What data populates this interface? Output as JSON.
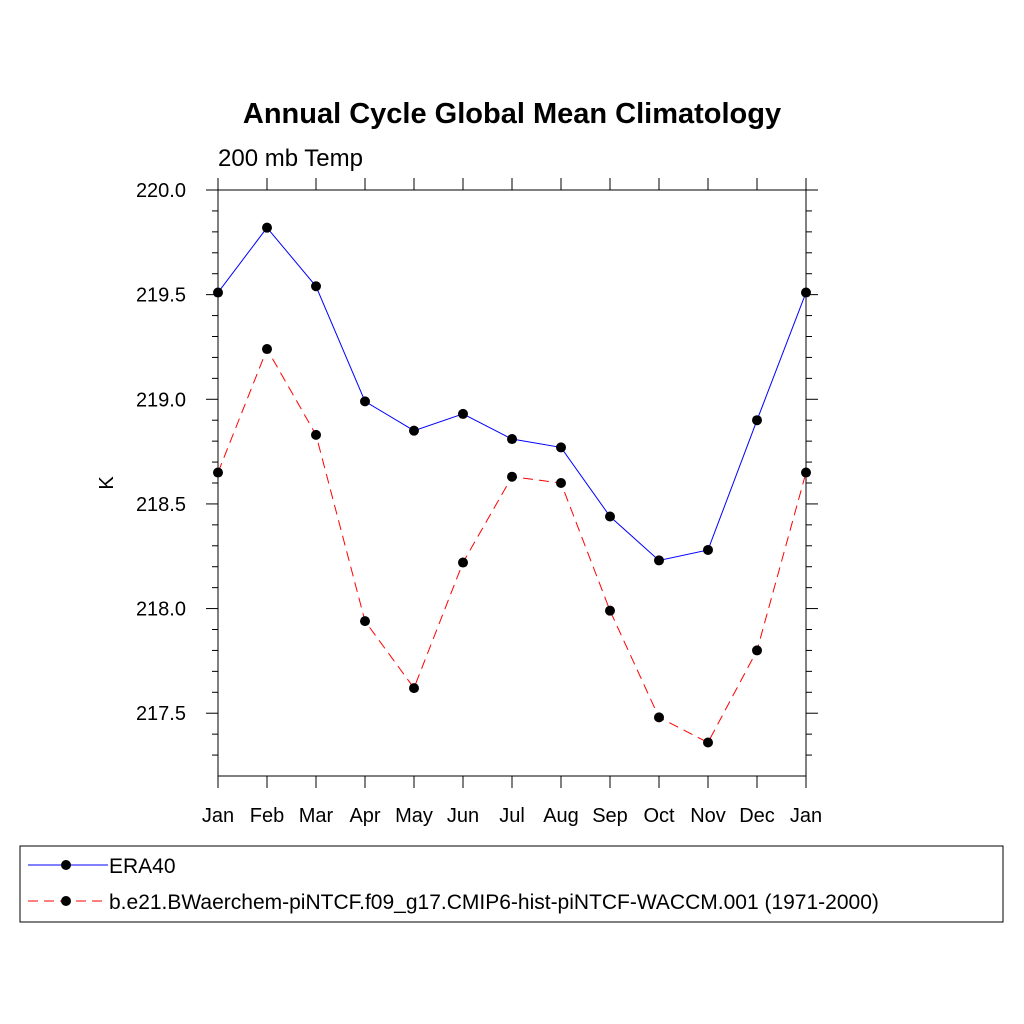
{
  "chart_data": {
    "type": "line",
    "title": "Annual Cycle Global Mean Climatology",
    "subtitle": "200 mb Temp",
    "ylabel": "K",
    "xlabel": "",
    "categories": [
      "Jan",
      "Feb",
      "Mar",
      "Apr",
      "May",
      "Jun",
      "Jul",
      "Aug",
      "Sep",
      "Oct",
      "Nov",
      "Dec",
      "Jan"
    ],
    "ylim": [
      217.2,
      220.0
    ],
    "yticks": [
      217.5,
      218.0,
      218.5,
      219.0,
      219.5,
      220.0
    ],
    "ytick_labels": [
      "217.5",
      "218.0",
      "218.5",
      "219.0",
      "219.5",
      "220.0"
    ],
    "grid": false,
    "legend_position": "bottom",
    "series": [
      {
        "name": "ERA40",
        "color": "#0000ff",
        "line_style": "solid",
        "marker": "filled-circle",
        "values": [
          219.51,
          219.82,
          219.54,
          218.99,
          218.85,
          218.93,
          218.81,
          218.77,
          218.44,
          218.23,
          218.28,
          218.9,
          219.51
        ]
      },
      {
        "name": "b.e21.BWaerchem-piNTCF.f09_g17.CMIP6-hist-piNTCF-WACCM.001 (1971-2000)",
        "color": "#ff0000",
        "line_style": "dashed",
        "marker": "filled-circle",
        "values": [
          218.65,
          219.24,
          218.83,
          217.94,
          217.62,
          218.22,
          218.63,
          218.6,
          217.99,
          217.48,
          217.36,
          217.8,
          218.65
        ]
      }
    ]
  }
}
